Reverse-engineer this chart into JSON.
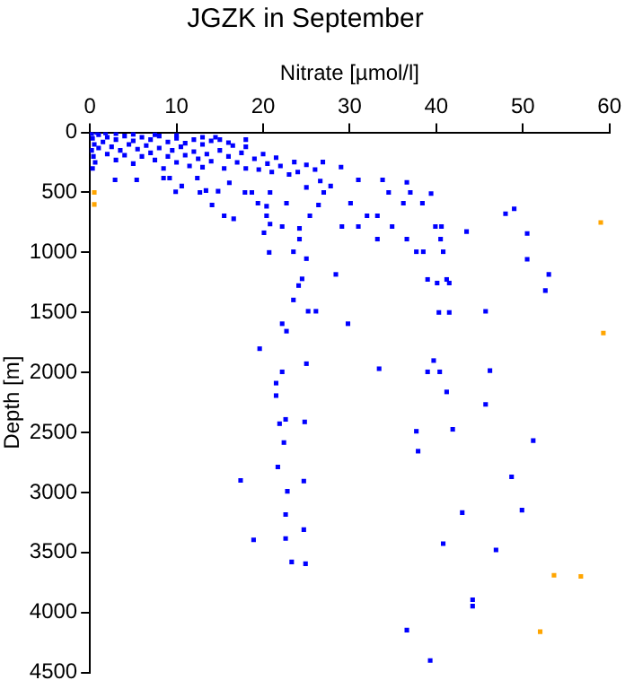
{
  "chart_data": {
    "type": "scatter",
    "title": "JGZK in September",
    "xlabel": "Nitrate [µmol/l]",
    "ylabel": "Depth [m]",
    "xlim": [
      0,
      60
    ],
    "xticks": [
      0,
      10,
      20,
      30,
      40,
      50,
      60
    ],
    "ylim": [
      4500,
      0
    ],
    "yticks": [
      0,
      500,
      1000,
      1500,
      2000,
      2500,
      3000,
      3500,
      4000,
      4500
    ],
    "grid": false,
    "legend": false,
    "marker": "square",
    "series": [
      {
        "color": "#0000ff",
        "x": [
          0.1,
          0.8,
          1.8,
          3,
          5,
          7.5,
          10,
          13,
          16,
          18,
          14.5,
          0.2,
          0.3,
          0.5,
          0.2,
          0.4,
          0.6,
          0.3,
          1,
          1.5,
          1,
          2,
          2,
          2.5,
          3,
          3,
          3.5,
          4,
          4,
          4.5,
          5,
          5,
          5.5,
          6,
          6,
          6.5,
          7,
          7,
          7.5,
          8,
          8,
          8.5,
          9,
          9,
          9.5,
          10,
          10,
          10.5,
          11,
          11,
          11.5,
          12,
          12,
          12.5,
          13,
          13,
          13.5,
          14,
          14,
          15,
          15,
          15.5,
          16,
          16.5,
          17,
          17.5,
          18,
          18,
          19,
          19.5,
          20,
          20.5,
          21,
          21.5,
          22,
          23,
          24,
          25,
          26,
          2.9,
          5.4,
          8.5,
          9.2,
          9.9,
          10.6,
          12.4,
          12.7,
          13.4,
          14.1,
          14.8,
          15.5,
          16.6,
          16.1,
          17.9,
          18.7,
          19.4,
          20.4,
          20.4,
          20.8,
          20.1,
          20.7,
          20.8,
          22.2,
          22.7,
          23.5,
          24.2,
          24.2,
          25,
          23.6,
          25,
          25.4,
          26.4,
          26.9,
          26.6,
          27,
          27.8,
          29.1,
          29,
          30.1,
          31,
          31,
          32,
          33.2,
          33.2,
          33.8,
          34.5,
          34.9,
          36.2,
          36.6,
          36.6,
          37,
          37.7,
          38.5,
          38.4,
          39.4,
          39.9,
          40.5,
          40.8,
          40.6,
          43.5,
          48,
          49,
          50.5,
          50.5,
          24.5,
          28.4,
          39,
          41.2,
          53,
          24.1,
          40.1,
          41.5,
          52.6,
          23.5,
          25.2,
          26.1,
          40.3,
          41.5,
          45.7,
          29.8,
          22.2,
          22.7,
          19.6,
          22.2,
          25,
          33.4,
          39.7,
          39,
          40.4,
          46.2,
          21.5,
          21.5,
          41.2,
          45.7,
          21.9,
          22.6,
          24.8,
          37.7,
          41.9,
          51.2,
          22.4,
          37.9,
          21.7,
          17.4,
          24.7,
          22.8,
          48.7,
          49.9,
          22.6,
          24.7,
          43,
          18.9,
          22.6,
          40.8,
          46.9,
          23.3,
          24.9,
          44.2,
          44.2,
          36.6,
          39.3
        ],
        "values": [
          0,
          0,
          5,
          10,
          15,
          20,
          25,
          40,
          85,
          60,
          40,
          10,
          50,
          100,
          150,
          200,
          250,
          300,
          20,
          80,
          130,
          40,
          180,
          120,
          60,
          230,
          150,
          30,
          190,
          100,
          70,
          260,
          140,
          40,
          200,
          110,
          60,
          170,
          230,
          30,
          130,
          300,
          80,
          200,
          150,
          50,
          250,
          120,
          90,
          190,
          280,
          60,
          160,
          220,
          100,
          290,
          180,
          70,
          240,
          150,
          60,
          300,
          200,
          110,
          250,
          170,
          300,
          120,
          220,
          310,
          180,
          260,
          330,
          210,
          280,
          350,
          330,
          270,
          310,
          395,
          395,
          380,
          380,
          495,
          447,
          380,
          500,
          484,
          605,
          490,
          695,
          720,
          420,
          500,
          500,
          590,
          615,
          695,
          763,
          836,
          1000,
          500,
          784,
          590,
          994,
          889,
          800,
          1052,
          247,
          458,
          695,
          605,
          247,
          405,
          500,
          447,
          784,
          289,
          590,
          395,
          784,
          695,
          695,
          889,
          395,
          500,
          784,
          590,
          416,
          889,
          500,
          994,
          994,
          590,
          510,
          784,
          889,
          994,
          784,
          826,
          678,
          636,
          842,
          1057,
          1220,
          1183,
          1225,
          1225,
          1183,
          1276,
          1255,
          1255,
          1318,
          1396,
          1490,
          1490,
          1500,
          1500,
          1490,
          1594,
          1594,
          1656,
          1802,
          1995,
          1927,
          1969,
          1901,
          1995,
          1995,
          1985,
          2089,
          2193,
          2162,
          2266,
          2427,
          2391,
          2412,
          2490,
          2474,
          2568,
          2584,
          2656,
          2787,
          2900,
          2905,
          2990,
          2870,
          3147,
          3184,
          3310,
          3168,
          3395,
          3384,
          3426,
          3479,
          3579,
          3594,
          3894,
          3947,
          4147,
          4400
        ]
      },
      {
        "color": "#ffa500",
        "x": [
          0.5,
          0.5,
          59,
          59.3,
          53.6,
          56.7,
          52
        ],
        "values": [
          500,
          600,
          750,
          1672,
          3690,
          3700,
          4160
        ]
      }
    ]
  }
}
